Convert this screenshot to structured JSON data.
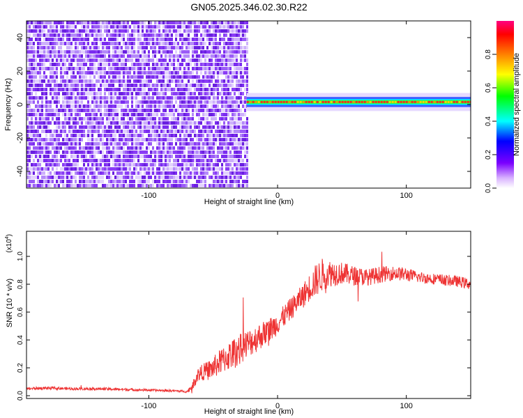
{
  "title": "GN05.2025.346.02.30.R22",
  "chart_data": [
    {
      "type": "heatmap",
      "xlabel": "Height of straight line (km)",
      "ylabel": "Frequency (Hz)",
      "xlim": [
        -195,
        150
      ],
      "ylim": [
        -50,
        50
      ],
      "xticks": [
        -100,
        0,
        100
      ],
      "yticks": [
        -40,
        -20,
        0,
        20,
        40
      ],
      "noise_region_x": [
        -195,
        -24
      ],
      "signal_band": {
        "x": [
          -24,
          150
        ],
        "center_freq": 1.5,
        "half_width": 3
      },
      "colorbar": {
        "label": "Normalized spectral amplitude",
        "range": [
          0,
          1
        ],
        "ticks": [
          0.0,
          0.2,
          0.4,
          0.6,
          0.8
        ],
        "colors": [
          "#ffffff",
          "#7b00ff",
          "#0000ff",
          "#00ffff",
          "#00ff00",
          "#ffff00",
          "#ff8000",
          "#ff0000",
          "#ff0080"
        ]
      }
    },
    {
      "type": "line",
      "xlabel": "Height of straight line (km)",
      "ylabel": "SNR (10 * v/v)",
      "y_multiplier": "(x10",
      "y_multiplier_exp": "4",
      "xlim": [
        -195,
        150
      ],
      "ylim": [
        -0.02,
        1.18
      ],
      "xticks": [
        -100,
        0,
        100
      ],
      "yticks": [
        0.0,
        0.2,
        0.4,
        0.6,
        0.8,
        1.0
      ],
      "series": [
        {
          "color": "#ee3333",
          "x": [
            -195,
            -180,
            -160,
            -140,
            -120,
            -100,
            -80,
            -70,
            -66,
            -62,
            -58,
            -54,
            -50,
            -45,
            -40,
            -35,
            -30,
            -25,
            -20,
            -15,
            -10,
            -5,
            0,
            5,
            10,
            15,
            20,
            25,
            30,
            35,
            40,
            50,
            60,
            70,
            80,
            90,
            100,
            110,
            120,
            130,
            140,
            150
          ],
          "y": [
            0.05,
            0.055,
            0.05,
            0.05,
            0.045,
            0.04,
            0.035,
            0.03,
            0.07,
            0.15,
            0.17,
            0.18,
            0.2,
            0.24,
            0.27,
            0.3,
            0.33,
            0.36,
            0.39,
            0.42,
            0.45,
            0.48,
            0.52,
            0.57,
            0.62,
            0.67,
            0.72,
            0.78,
            0.83,
            0.87,
            0.88,
            0.88,
            0.86,
            0.85,
            0.87,
            0.88,
            0.87,
            0.85,
            0.84,
            0.83,
            0.82,
            0.8
          ],
          "noise_amplitude": [
            0.01,
            0.01,
            0.01,
            0.01,
            0.01,
            0.008,
            0.008,
            0.008,
            0.03,
            0.05,
            0.06,
            0.07,
            0.08,
            0.09,
            0.1,
            0.11,
            0.11,
            0.11,
            0.1,
            0.1,
            0.09,
            0.09,
            0.08,
            0.08,
            0.08,
            0.08,
            0.09,
            0.1,
            0.12,
            0.12,
            0.1,
            0.08,
            0.07,
            0.06,
            0.06,
            0.05,
            0.05,
            0.04,
            0.04,
            0.04,
            0.04,
            0.04
          ]
        }
      ]
    }
  ]
}
